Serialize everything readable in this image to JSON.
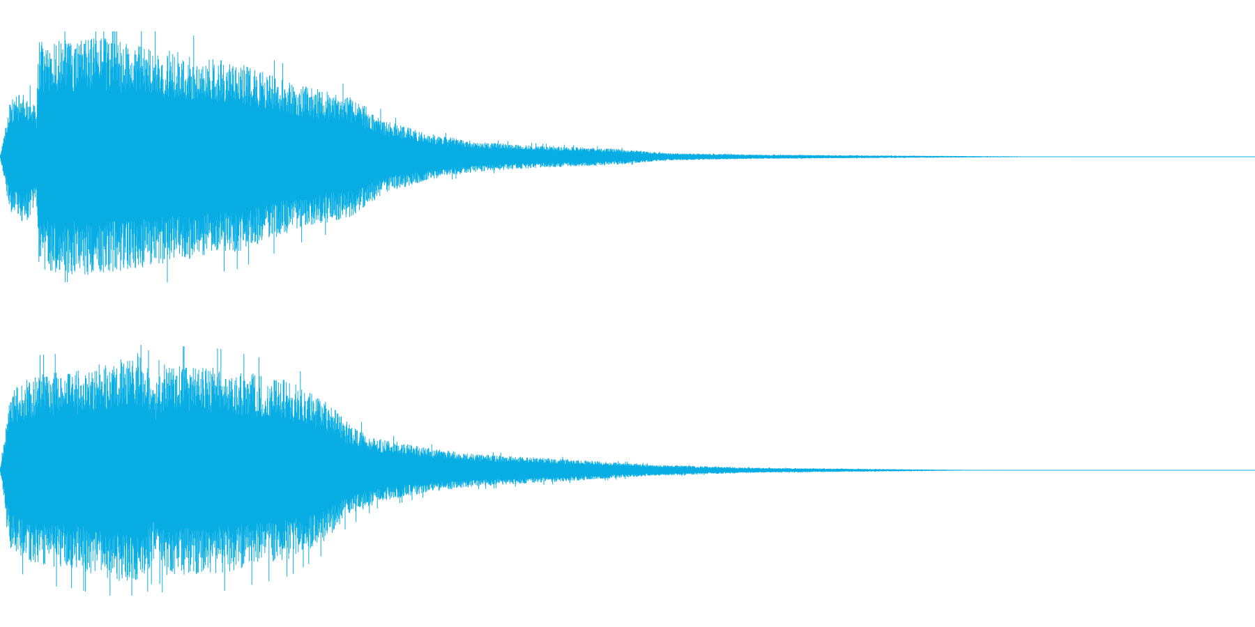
{
  "waveform": {
    "color": "#08ADE4",
    "background": "#FFFFFF",
    "channels": [
      {
        "name": "",
        "attack_point": 0.007,
        "main_onset": 0.031,
        "envelope": [
          [
            0.0,
            0.0
          ],
          [
            0.008,
            0.45
          ],
          [
            0.02,
            0.55
          ],
          [
            0.029,
            0.4
          ],
          [
            0.031,
            0.93
          ],
          [
            0.08,
            0.96
          ],
          [
            0.13,
            0.86
          ],
          [
            0.19,
            0.76
          ],
          [
            0.24,
            0.58
          ],
          [
            0.28,
            0.48
          ],
          [
            0.31,
            0.28
          ],
          [
            0.345,
            0.18
          ],
          [
            0.38,
            0.12
          ],
          [
            0.43,
            0.09
          ],
          [
            0.49,
            0.065
          ],
          [
            0.53,
            0.03
          ],
          [
            0.6,
            0.018
          ],
          [
            0.7,
            0.01
          ],
          [
            0.8,
            0.004
          ],
          [
            0.85,
            0.0
          ]
        ]
      },
      {
        "name": "",
        "attack_point": 0.007,
        "main_onset": 0.009,
        "envelope": [
          [
            0.0,
            0.0
          ],
          [
            0.009,
            0.65
          ],
          [
            0.03,
            0.78
          ],
          [
            0.06,
            0.8
          ],
          [
            0.11,
            0.95
          ],
          [
            0.125,
            0.7
          ],
          [
            0.13,
            0.85
          ],
          [
            0.18,
            0.82
          ],
          [
            0.23,
            0.72
          ],
          [
            0.26,
            0.56
          ],
          [
            0.275,
            0.4
          ],
          [
            0.3,
            0.26
          ],
          [
            0.34,
            0.18
          ],
          [
            0.38,
            0.13
          ],
          [
            0.45,
            0.09
          ],
          [
            0.52,
            0.045
          ],
          [
            0.6,
            0.02
          ],
          [
            0.7,
            0.01
          ],
          [
            0.76,
            0.004
          ],
          [
            0.8,
            0.0
          ]
        ]
      }
    ]
  }
}
